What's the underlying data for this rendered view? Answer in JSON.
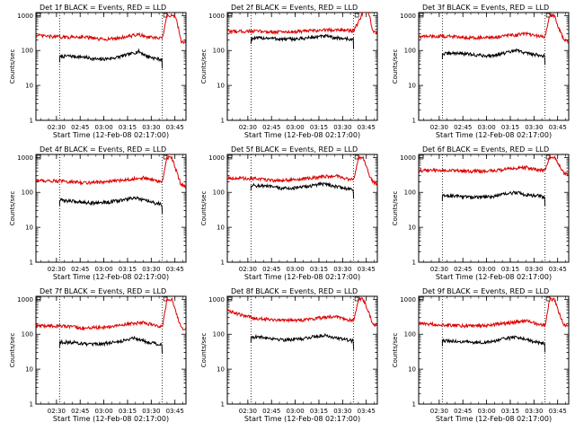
{
  "colors": {
    "events": "#000000",
    "lld": "#dd0000",
    "axis": "#000000",
    "background": "#ffffff"
  },
  "chart_data": [
    {
      "type": "line",
      "title": "Det 1f BLACK = Events, RED = LLD",
      "xlabel": "Start Time (12-Feb-08 02:17:00)",
      "ylabel": "Counts/sec",
      "yscale": "log",
      "ylim": [
        1,
        1000
      ],
      "ytick_labels": [
        "1",
        "10",
        "100",
        "1000"
      ],
      "xtick_labels": [
        "02:30",
        "02:45",
        "03:00",
        "03:15",
        "03:30",
        "03:45"
      ],
      "xlim_minutes": [
        0,
        95
      ],
      "dotted_vlines_minutes": [
        15,
        80
      ],
      "series": [
        {
          "key": "events",
          "t": [
            15,
            20,
            30,
            40,
            50,
            55,
            60,
            65,
            70,
            75,
            80
          ],
          "values": [
            65,
            70,
            65,
            55,
            62,
            70,
            80,
            95,
            70,
            60,
            55
          ]
        },
        {
          "key": "lld",
          "t": [
            0,
            10,
            20,
            30,
            40,
            50,
            60,
            65,
            70,
            75,
            80,
            83,
            86,
            88,
            90,
            92,
            95
          ],
          "values": [
            270,
            250,
            240,
            250,
            210,
            220,
            260,
            290,
            250,
            230,
            220,
            1000,
            1000,
            1000,
            500,
            180,
            170
          ]
        }
      ]
    },
    {
      "type": "line",
      "title": "Det 2f BLACK = Events, RED = LLD",
      "xlabel": "Start Time (12-Feb-08 02:17:00)",
      "ylabel": "Counts/sec",
      "yscale": "log",
      "ylim": [
        1,
        1000
      ],
      "ytick_labels": [
        "1",
        "10",
        "100",
        "1000"
      ],
      "xtick_labels": [
        "02:30",
        "02:45",
        "03:00",
        "03:15",
        "03:30",
        "03:45"
      ],
      "xlim_minutes": [
        0,
        95
      ],
      "dotted_vlines_minutes": [
        15,
        80
      ],
      "series": [
        {
          "key": "events",
          "t": [
            15,
            25,
            35,
            45,
            55,
            62,
            68,
            75,
            80
          ],
          "values": [
            220,
            230,
            210,
            215,
            240,
            260,
            230,
            220,
            200
          ]
        },
        {
          "key": "lld",
          "t": [
            0,
            15,
            30,
            45,
            60,
            70,
            80,
            85,
            88,
            90,
            92,
            95
          ],
          "values": [
            350,
            360,
            340,
            350,
            380,
            400,
            360,
            1000,
            2000,
            1000,
            350,
            300
          ]
        }
      ]
    },
    {
      "type": "line",
      "title": "Det 3f BLACK = Events, RED = LLD",
      "xlabel": "Start Time (12-Feb-08 02:17:00)",
      "ylabel": "Counts/sec",
      "yscale": "log",
      "ylim": [
        1,
        1000
      ],
      "ytick_labels": [
        "1",
        "10",
        "100",
        "1000"
      ],
      "xtick_labels": [
        "02:30",
        "02:45",
        "03:00",
        "03:15",
        "03:30",
        "03:45"
      ],
      "xlim_minutes": [
        0,
        95
      ],
      "dotted_vlines_minutes": [
        15,
        80
      ],
      "series": [
        {
          "key": "events",
          "t": [
            15,
            25,
            35,
            45,
            55,
            62,
            68,
            75,
            80
          ],
          "values": [
            80,
            85,
            75,
            70,
            85,
            100,
            85,
            75,
            70
          ]
        },
        {
          "key": "lld",
          "t": [
            0,
            15,
            30,
            45,
            60,
            68,
            75,
            80,
            83,
            86,
            89,
            92,
            95
          ],
          "values": [
            250,
            260,
            240,
            230,
            280,
            300,
            260,
            250,
            1000,
            1000,
            400,
            200,
            180
          ]
        }
      ]
    },
    {
      "type": "line",
      "title": "Det 4f BLACK = Events, RED = LLD",
      "xlabel": "Start Time (12-Feb-08 02:17:00)",
      "ylabel": "Counts/sec",
      "yscale": "log",
      "ylim": [
        1,
        1000
      ],
      "ytick_labels": [
        "1",
        "10",
        "100",
        "1000"
      ],
      "xtick_labels": [
        "02:30",
        "02:45",
        "03:00",
        "03:15",
        "03:30",
        "03:45"
      ],
      "xlim_minutes": [
        0,
        95
      ],
      "dotted_vlines_minutes": [
        15,
        80
      ],
      "series": [
        {
          "key": "events",
          "t": [
            15,
            25,
            35,
            45,
            55,
            62,
            68,
            75,
            80
          ],
          "values": [
            60,
            55,
            50,
            52,
            60,
            70,
            60,
            50,
            45
          ]
        },
        {
          "key": "lld",
          "t": [
            0,
            15,
            30,
            45,
            60,
            68,
            75,
            80,
            83,
            86,
            89,
            92,
            95
          ],
          "values": [
            220,
            210,
            190,
            200,
            240,
            260,
            220,
            200,
            1000,
            1000,
            400,
            160,
            150
          ]
        }
      ]
    },
    {
      "type": "line",
      "title": "Det 5f BLACK = Events, RED = LLD",
      "xlabel": "Start Time (12-Feb-08 02:17:00)",
      "ylabel": "Counts/sec",
      "yscale": "log",
      "ylim": [
        1,
        1000
      ],
      "ytick_labels": [
        "1",
        "10",
        "100",
        "1000"
      ],
      "xtick_labels": [
        "02:30",
        "02:45",
        "03:00",
        "03:15",
        "03:30",
        "03:45"
      ],
      "xlim_minutes": [
        0,
        95
      ],
      "dotted_vlines_minutes": [
        15,
        80
      ],
      "series": [
        {
          "key": "events",
          "t": [
            15,
            25,
            35,
            45,
            55,
            62,
            68,
            75,
            80
          ],
          "values": [
            160,
            150,
            130,
            135,
            160,
            180,
            150,
            130,
            120
          ]
        },
        {
          "key": "lld",
          "t": [
            0,
            15,
            30,
            45,
            60,
            68,
            75,
            80,
            83,
            86,
            89,
            92,
            95
          ],
          "values": [
            260,
            250,
            220,
            230,
            280,
            300,
            250,
            230,
            1000,
            1000,
            400,
            200,
            180
          ]
        }
      ]
    },
    {
      "type": "line",
      "title": "Det 6f BLACK = Events, RED = LLD",
      "xlabel": "Start Time (12-Feb-08 02:17:00)",
      "ylabel": "Counts/sec",
      "yscale": "log",
      "ylim": [
        1,
        1000
      ],
      "ytick_labels": [
        "1",
        "10",
        "100",
        "1000"
      ],
      "xtick_labels": [
        "02:30",
        "02:45",
        "03:00",
        "03:15",
        "03:30",
        "03:45"
      ],
      "xlim_minutes": [
        0,
        95
      ],
      "dotted_vlines_minutes": [
        15,
        80
      ],
      "series": [
        {
          "key": "events",
          "t": [
            15,
            25,
            35,
            45,
            55,
            62,
            68,
            75,
            80
          ],
          "values": [
            80,
            78,
            72,
            75,
            90,
            100,
            85,
            80,
            75
          ]
        },
        {
          "key": "lld",
          "t": [
            0,
            15,
            30,
            45,
            60,
            68,
            75,
            80,
            83,
            86,
            89,
            92,
            95
          ],
          "values": [
            420,
            430,
            400,
            410,
            480,
            520,
            450,
            430,
            1000,
            1000,
            600,
            360,
            350
          ]
        }
      ]
    },
    {
      "type": "line",
      "title": "Det 7f BLACK = Events, RED = LLD",
      "xlabel": "Start Time (12-Feb-08 02:17:00)",
      "ylabel": "Counts/sec",
      "yscale": "log",
      "ylim": [
        1,
        1000
      ],
      "ytick_labels": [
        "1",
        "10",
        "100",
        "1000"
      ],
      "xtick_labels": [
        "02:30",
        "02:45",
        "03:00",
        "03:15",
        "03:30",
        "03:45"
      ],
      "xlim_minutes": [
        0,
        95
      ],
      "dotted_vlines_minutes": [
        15,
        80
      ],
      "series": [
        {
          "key": "events",
          "t": [
            15,
            25,
            35,
            45,
            55,
            62,
            68,
            75,
            80
          ],
          "values": [
            60,
            58,
            50,
            55,
            65,
            80,
            65,
            55,
            50
          ]
        },
        {
          "key": "lld",
          "t": [
            0,
            15,
            30,
            45,
            60,
            68,
            75,
            80,
            83,
            86,
            89,
            92,
            95
          ],
          "values": [
            170,
            175,
            150,
            160,
            200,
            220,
            180,
            160,
            1000,
            1000,
            400,
            150,
            140
          ]
        }
      ]
    },
    {
      "type": "line",
      "title": "Det 8f BLACK = Events, RED = LLD",
      "xlabel": "Start Time (12-Feb-08 02:17:00)",
      "ylabel": "Counts/sec",
      "yscale": "log",
      "ylim": [
        1,
        1000
      ],
      "ytick_labels": [
        "1",
        "10",
        "100",
        "1000"
      ],
      "xtick_labels": [
        "02:30",
        "02:45",
        "03:00",
        "03:15",
        "03:30",
        "03:45"
      ],
      "xlim_minutes": [
        0,
        95
      ],
      "dotted_vlines_minutes": [
        15,
        80
      ],
      "series": [
        {
          "key": "events",
          "t": [
            15,
            25,
            35,
            45,
            55,
            62,
            68,
            75,
            80
          ],
          "values": [
            85,
            80,
            70,
            72,
            85,
            95,
            80,
            70,
            65
          ]
        },
        {
          "key": "lld",
          "t": [
            0,
            5,
            15,
            30,
            45,
            60,
            68,
            75,
            80,
            83,
            86,
            89,
            92,
            95
          ],
          "values": [
            500,
            400,
            300,
            260,
            250,
            300,
            330,
            270,
            250,
            1000,
            1000,
            500,
            200,
            180
          ]
        }
      ]
    },
    {
      "type": "line",
      "title": "Det 9f BLACK = Events, RED = LLD",
      "xlabel": "Start Time (12-Feb-08 02:17:00)",
      "ylabel": "Counts/sec",
      "yscale": "log",
      "ylim": [
        1,
        1000
      ],
      "ytick_labels": [
        "1",
        "10",
        "100",
        "1000"
      ],
      "xtick_labels": [
        "02:30",
        "02:45",
        "03:00",
        "03:15",
        "03:30",
        "03:45"
      ],
      "xlim_minutes": [
        0,
        95
      ],
      "dotted_vlines_minutes": [
        15,
        80
      ],
      "series": [
        {
          "key": "events",
          "t": [
            15,
            25,
            35,
            45,
            55,
            62,
            68,
            75,
            80
          ],
          "values": [
            65,
            62,
            58,
            60,
            75,
            85,
            70,
            60,
            55
          ]
        },
        {
          "key": "lld",
          "t": [
            0,
            15,
            30,
            45,
            60,
            68,
            75,
            80,
            83,
            86,
            89,
            92,
            95
          ],
          "values": [
            200,
            190,
            170,
            180,
            220,
            240,
            200,
            180,
            1000,
            1000,
            400,
            180,
            170
          ]
        }
      ]
    }
  ]
}
